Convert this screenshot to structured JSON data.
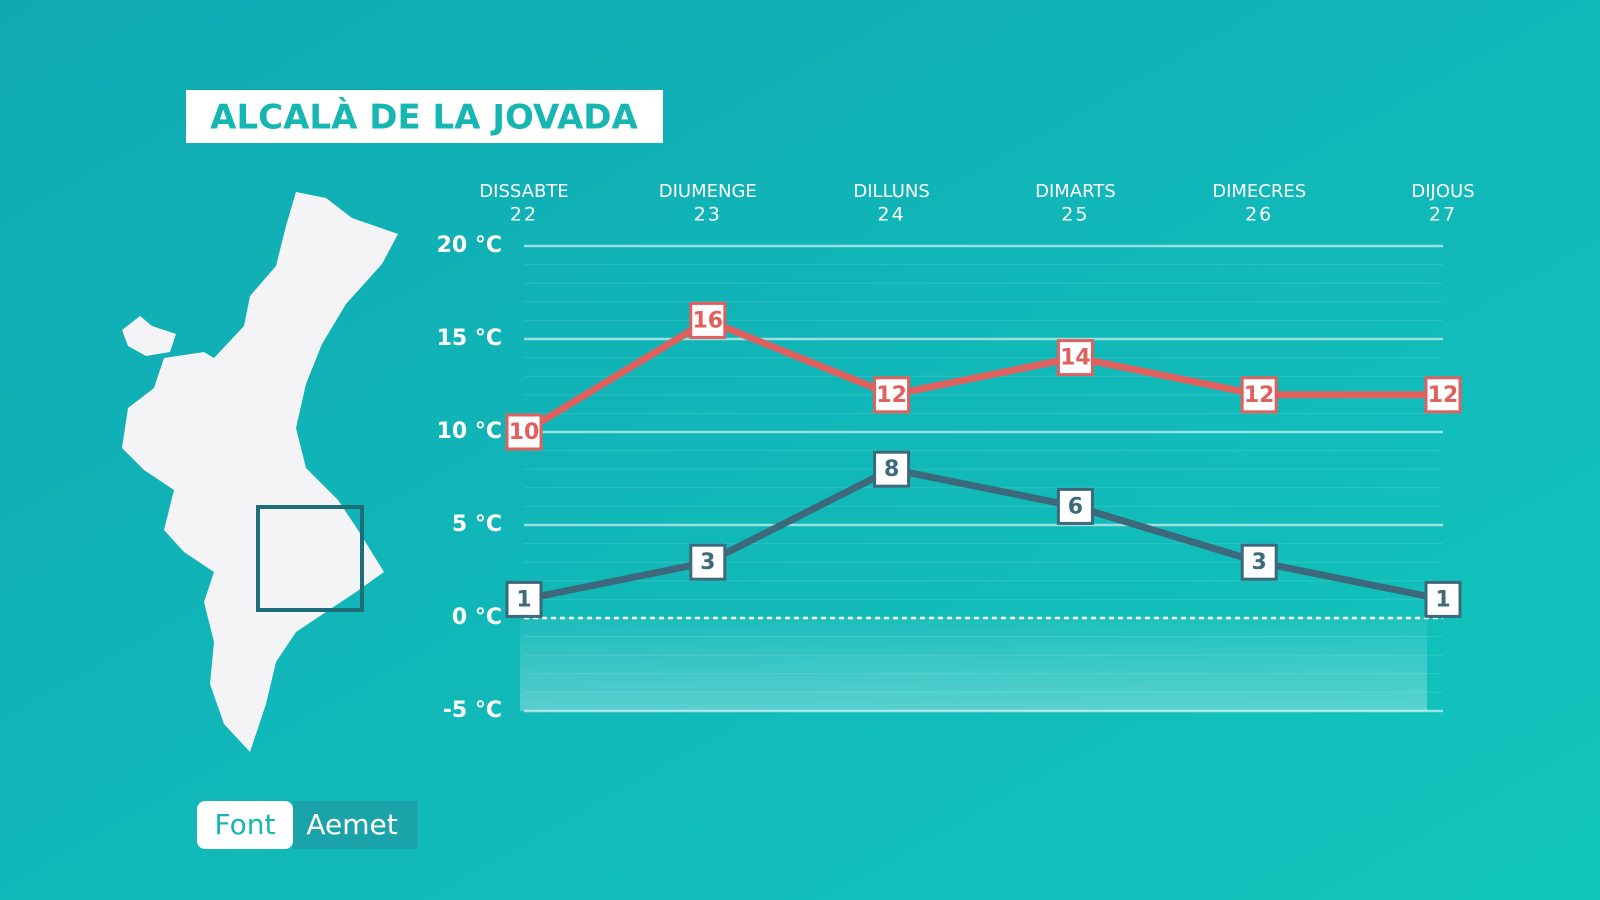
{
  "chart_data": {
    "type": "line",
    "title": "ALCALÀ DE LA JOVADA",
    "categories": [
      "DISSABTE",
      "DIUMENGE",
      "DILLUNS",
      "DIMARTS",
      "DIMECRES",
      "DIJOUS"
    ],
    "dates": [
      "22",
      "23",
      "24",
      "25",
      "26",
      "27"
    ],
    "series": [
      {
        "color": "#e0605e",
        "values": [
          10,
          16,
          12,
          14,
          12,
          12
        ]
      },
      {
        "color": "#3c6a7c",
        "values": [
          1,
          3,
          8,
          6,
          3,
          1
        ]
      }
    ],
    "ylim": [
      -5,
      20
    ],
    "yticks": [
      {
        "value": -5,
        "label": "-5 °C"
      },
      {
        "value": 0,
        "label": "0 °C"
      },
      {
        "value": 5,
        "label": "5 °C"
      },
      {
        "value": 10,
        "label": "10 °C"
      },
      {
        "value": 15,
        "label": "15 °C"
      },
      {
        "value": 20,
        "label": "20 °C"
      }
    ],
    "grid": true,
    "source_label": "Font",
    "source": "Aemet"
  }
}
